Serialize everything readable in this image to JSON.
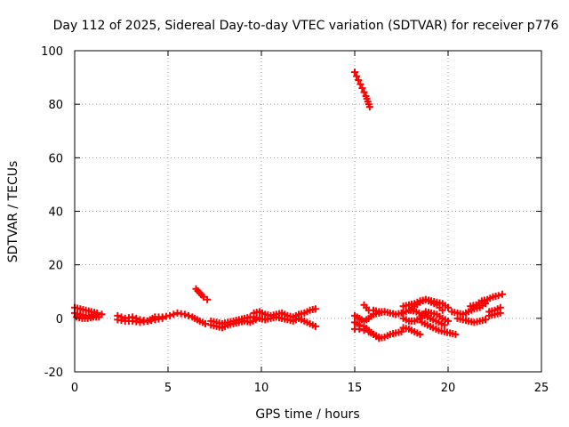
{
  "chart_data": {
    "type": "scatter",
    "title": "Day 112 of 2025, Sidereal Day-to-day VTEC variation (SDTVAR) for receiver p776",
    "xlabel": "GPS time / hours",
    "ylabel": "SDTVAR / TECUs",
    "xlim": [
      0,
      25
    ],
    "ylim": [
      -20,
      100
    ],
    "xticks": [
      0,
      5,
      10,
      15,
      20,
      25
    ],
    "yticks": [
      -20,
      0,
      20,
      40,
      60,
      80,
      100
    ],
    "grid": true,
    "marker": "+",
    "marker_color": "#ff0000",
    "series": [
      {
        "name": "SDTVAR",
        "segments": [
          {
            "x": [
              0.0,
              0.3,
              0.6,
              0.9,
              1.2,
              1.45
            ],
            "y": [
              4.0,
              3.5,
              3.0,
              2.5,
              2.0,
              1.5
            ]
          },
          {
            "x": [
              0.0,
              0.3,
              0.6,
              0.9,
              1.2,
              1.45
            ],
            "y": [
              2.0,
              1.5,
              1.0,
              1.0,
              1.5,
              1.5
            ]
          },
          {
            "x": [
              0.1,
              0.4,
              0.7,
              1.0,
              1.3
            ],
            "y": [
              0.5,
              0.0,
              0.0,
              0.5,
              0.5
            ]
          },
          {
            "x": [
              2.3,
              2.7,
              3.1,
              3.5,
              3.9,
              4.3,
              4.7,
              5.1,
              5.5,
              5.9,
              6.3,
              6.7,
              7.0
            ],
            "y": [
              1.0,
              0.0,
              0.5,
              -0.5,
              -1.0,
              0.5,
              0.5,
              1.0,
              2.0,
              1.5,
              0.5,
              -1.0,
              -2.0
            ]
          },
          {
            "x": [
              2.3,
              2.7,
              3.1,
              3.5,
              3.9,
              4.3,
              4.7
            ],
            "y": [
              -0.5,
              -1.0,
              -1.0,
              -1.5,
              -1.0,
              -0.5,
              0.0
            ]
          },
          {
            "x": [
              6.5,
              6.7,
              6.9,
              7.1
            ],
            "y": [
              11.0,
              9.5,
              8.0,
              7.0
            ]
          },
          {
            "x": [
              7.3,
              7.6,
              7.9,
              8.2,
              8.5,
              8.8,
              9.1,
              9.4,
              9.7
            ],
            "y": [
              -2.5,
              -3.0,
              -3.5,
              -2.5,
              -2.0,
              -1.5,
              -1.0,
              -1.5,
              -0.5
            ]
          },
          {
            "x": [
              7.3,
              7.6,
              7.9,
              8.2,
              8.5,
              8.8,
              9.1,
              9.4
            ],
            "y": [
              -1.0,
              -1.5,
              -2.0,
              -1.5,
              -1.0,
              -0.5,
              0.0,
              0.5
            ]
          },
          {
            "x": [
              9.6,
              9.9,
              10.2,
              10.5,
              10.8,
              11.1,
              11.4,
              11.7,
              12.0,
              12.3,
              12.6,
              12.9
            ],
            "y": [
              2.0,
              2.5,
              1.5,
              1.0,
              1.5,
              2.0,
              1.0,
              0.5,
              1.5,
              2.0,
              3.0,
              3.5
            ]
          },
          {
            "x": [
              9.6,
              9.9,
              10.2,
              10.5,
              10.8,
              11.1,
              11.4,
              11.7,
              12.0,
              12.3,
              12.6,
              12.9
            ],
            "y": [
              0.5,
              0.0,
              -0.5,
              0.0,
              0.5,
              0.0,
              -0.5,
              -1.0,
              0.0,
              -1.0,
              -2.0,
              -3.0
            ]
          },
          {
            "x": [
              15.0,
              15.1,
              15.2,
              15.3,
              15.4,
              15.5,
              15.6,
              15.7,
              15.8
            ],
            "y": [
              92.0,
              90.5,
              89.0,
              87.5,
              86.0,
              84.5,
              83.0,
              81.0,
              79.0
            ]
          },
          {
            "x": [
              15.0,
              15.25,
              15.5,
              15.75,
              16.0,
              16.3
            ],
            "y": [
              -1.5,
              -2.5,
              -3.0,
              -4.5,
              -6.0,
              -7.0
            ]
          },
          {
            "x": [
              15.0,
              15.25,
              15.5,
              15.75,
              16.0,
              16.3,
              16.6,
              16.9,
              17.2,
              17.5
            ],
            "y": [
              -4.0,
              -4.0,
              -4.5,
              -5.0,
              -6.0,
              -7.5,
              -7.0,
              -6.0,
              -5.5,
              -5.0
            ]
          },
          {
            "x": [
              15.0,
              15.25,
              15.5,
              15.75,
              16.0,
              16.3,
              16.6,
              16.9,
              17.2,
              17.5
            ],
            "y": [
              1.0,
              0.0,
              -1.0,
              0.0,
              1.5,
              2.0,
              2.5,
              2.0,
              1.5,
              2.0
            ]
          },
          {
            "x": [
              15.5,
              15.75,
              16.0,
              16.3,
              16.6
            ],
            "y": [
              5.0,
              3.0,
              3.0,
              2.5,
              2.5
            ]
          },
          {
            "x": [
              17.6,
              17.9,
              18.2,
              18.5,
              18.8,
              19.1,
              19.4,
              19.7,
              20.0
            ],
            "y": [
              4.5,
              5.0,
              5.5,
              6.5,
              7.0,
              6.5,
              6.0,
              5.5,
              4.0
            ]
          },
          {
            "x": [
              17.6,
              17.9,
              18.2,
              18.5,
              18.8,
              19.1,
              19.4,
              19.7
            ],
            "y": [
              2.0,
              3.0,
              4.5,
              6.0,
              7.0,
              6.0,
              5.0,
              3.0
            ]
          },
          {
            "x": [
              18.0,
              18.3,
              18.6,
              18.9,
              19.2,
              19.5,
              19.8
            ],
            "y": [
              3.0,
              2.5,
              1.5,
              0.5,
              -0.5,
              -1.5,
              -2.5
            ]
          },
          {
            "x": [
              17.6,
              17.9,
              18.2,
              18.5,
              18.8,
              19.1,
              19.4,
              19.7,
              20.0
            ],
            "y": [
              0.0,
              -1.0,
              -1.0,
              0.0,
              2.5,
              2.0,
              1.5,
              0.0,
              -1.0
            ]
          },
          {
            "x": [
              18.6,
              18.9,
              19.2,
              19.5,
              19.8,
              20.1,
              20.4
            ],
            "y": [
              -1.5,
              -2.5,
              -3.5,
              -4.5,
              -5.0,
              -5.5,
              -6.0
            ]
          },
          {
            "x": [
              17.6,
              17.9,
              18.2,
              18.5
            ],
            "y": [
              -3.5,
              -4.0,
              -5.0,
              -6.0
            ]
          },
          {
            "x": [
              20.2,
              20.5,
              20.8,
              21.1,
              21.4,
              21.7,
              22.0
            ],
            "y": [
              2.5,
              2.0,
              1.5,
              2.5,
              3.5,
              4.0,
              5.5
            ]
          },
          {
            "x": [
              20.5,
              20.8,
              21.1,
              21.4,
              21.7,
              22.0
            ],
            "y": [
              0.0,
              -0.5,
              -1.0,
              -1.5,
              -1.0,
              -0.5
            ]
          },
          {
            "x": [
              21.2,
              21.5,
              21.8,
              22.1,
              22.4,
              22.7,
              22.9
            ],
            "y": [
              4.5,
              5.0,
              6.5,
              7.0,
              8.0,
              8.5,
              9.0
            ]
          },
          {
            "x": [
              22.2,
              22.5,
              22.8
            ],
            "y": [
              2.5,
              3.0,
              4.0
            ]
          },
          {
            "x": [
              22.2,
              22.5,
              22.8
            ],
            "y": [
              1.0,
              1.5,
              2.0
            ]
          }
        ]
      }
    ]
  }
}
